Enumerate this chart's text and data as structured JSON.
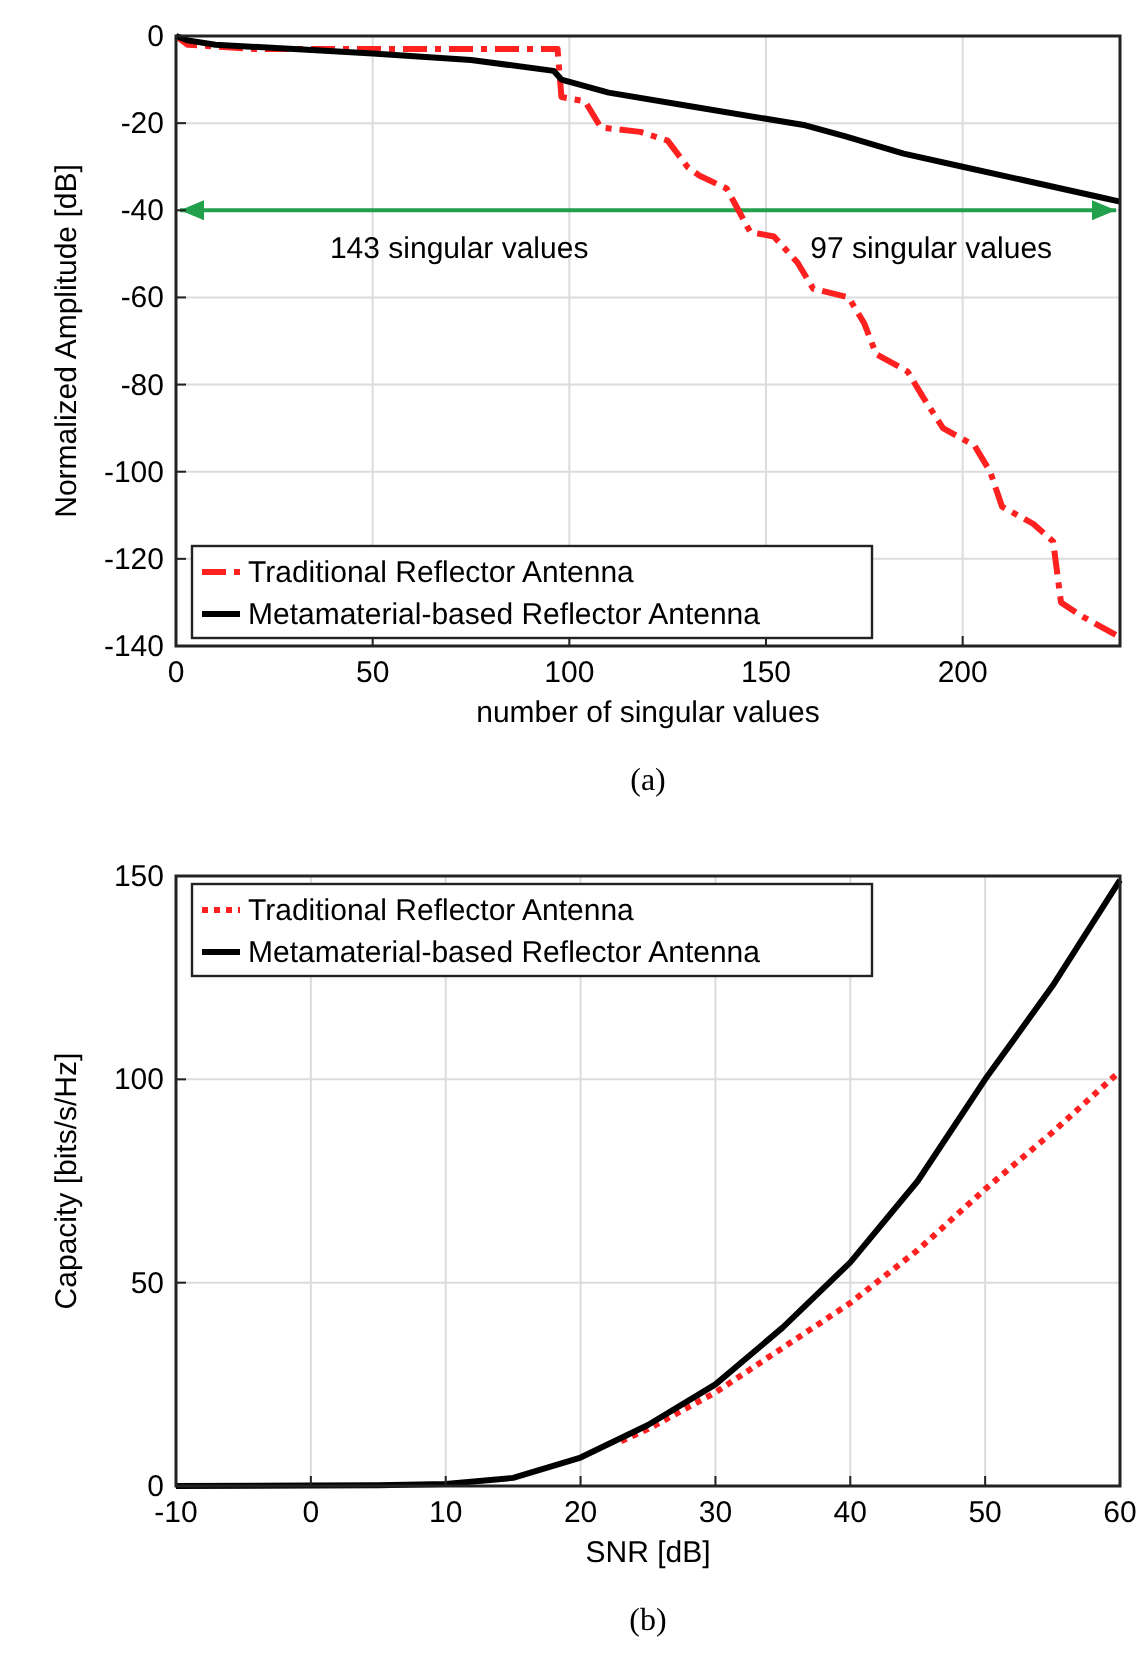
{
  "chart_data": [
    {
      "type": "line",
      "xlabel": "number of singular values",
      "ylabel": "Normalized Amplitude [dB]",
      "xlim": [
        0,
        240
      ],
      "ylim": [
        -140,
        0
      ],
      "xticks": [
        0,
        50,
        100,
        150,
        200
      ],
      "yticks": [
        -140,
        -120,
        -100,
        -80,
        -60,
        -40,
        -20,
        0
      ],
      "grid": true,
      "legend": "bottom left",
      "series": [
        {
          "name": "Traditional Reflector Antenna",
          "color": "#ff2020",
          "line_style": "dashed",
          "x": [
            0,
            3,
            20,
            60,
            97,
            98,
            104,
            108,
            118,
            125,
            130,
            133,
            140,
            143,
            146,
            152,
            158,
            162,
            171,
            175,
            178,
            186,
            190,
            195,
            203,
            207,
            210,
            218,
            223,
            225,
            230,
            240
          ],
          "values": [
            0,
            -2,
            -3,
            -3,
            -3,
            -14,
            -15,
            -21,
            -22,
            -24,
            -30,
            -32,
            -35,
            -40,
            -45,
            -46,
            -52,
            -58,
            -60,
            -66,
            -73,
            -77,
            -83,
            -90,
            -94,
            -100,
            -108,
            -112,
            -116,
            -130,
            -133,
            -138
          ]
        },
        {
          "name": "Metamaterial-based Reflector Antenna",
          "color": "#000000",
          "line_style": "solid",
          "x": [
            0,
            3,
            10,
            30,
            50,
            75,
            96,
            98,
            110,
            130,
            150,
            160,
            170,
            185,
            200,
            215,
            225,
            235,
            240
          ],
          "values": [
            0,
            -1,
            -2,
            -3,
            -4,
            -5.5,
            -8,
            -10,
            -13,
            -16,
            -19,
            -20.5,
            -23,
            -27,
            -30,
            -33,
            -35,
            -37,
            -38
          ]
        }
      ],
      "ref_lines": [
        {
          "axis": "y",
          "value": -40,
          "color": "#22a04b"
        }
      ],
      "annotations": [
        "143 singular values",
        "97 singular values",
        "(a)"
      ]
    },
    {
      "type": "line",
      "xlabel": "SNR [dB]",
      "ylabel": "Capacity [bits/s/Hz]",
      "xlim": [
        -10,
        60
      ],
      "ylim": [
        0,
        150
      ],
      "xticks": [
        -10,
        0,
        10,
        20,
        30,
        40,
        50,
        60
      ],
      "yticks": [
        0,
        50,
        100,
        150
      ],
      "grid": true,
      "legend": "top left",
      "series": [
        {
          "name": "Traditional Reflector Antenna",
          "color": "#ff2020",
          "line_style": "dotted",
          "x": [
            23,
            25,
            30,
            35,
            40,
            45,
            50,
            55,
            60
          ],
          "values": [
            11,
            14,
            23,
            34,
            45,
            58,
            73,
            87,
            102
          ]
        },
        {
          "name": "Metamaterial-based Reflector Antenna",
          "color": "#000000",
          "line_style": "solid",
          "x": [
            -10,
            0,
            5,
            10,
            15,
            20,
            25,
            30,
            35,
            40,
            45,
            50,
            55,
            60
          ],
          "values": [
            0,
            0.1,
            0.2,
            0.5,
            2,
            7,
            15,
            25,
            39,
            55,
            75,
            100,
            123,
            149
          ]
        }
      ],
      "annotations": [
        "(b)"
      ]
    }
  ]
}
